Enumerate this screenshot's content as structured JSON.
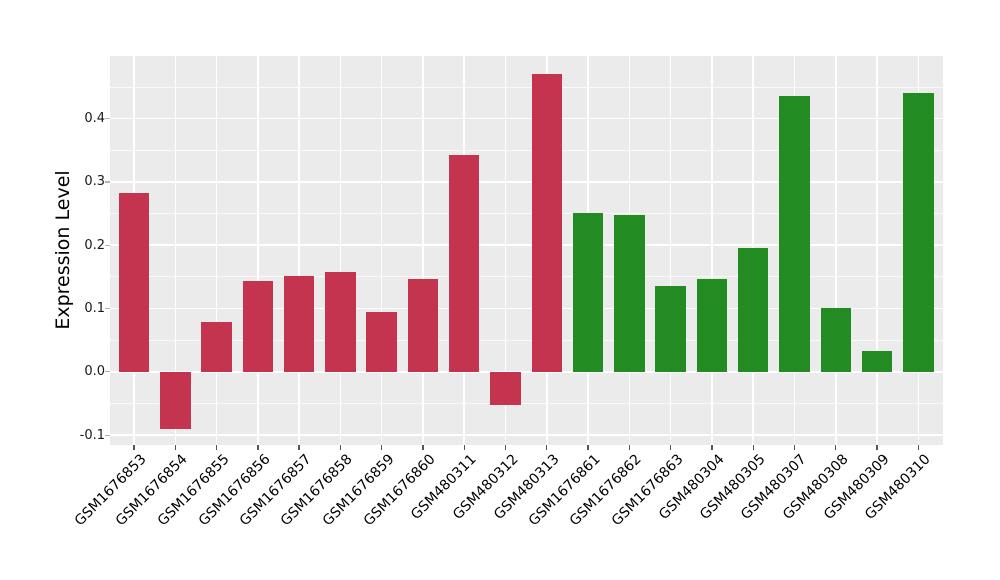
{
  "figure": {
    "background": "#ffffff"
  },
  "chart_data": {
    "type": "bar",
    "title": "",
    "xlabel": "",
    "ylabel": "Expression Level",
    "categories": [
      "GSM1676853",
      "GSM1676854",
      "GSM1676855",
      "GSM1676856",
      "GSM1676857",
      "GSM1676858",
      "GSM1676859",
      "GSM1676860",
      "GSM480311",
      "GSM480312",
      "GSM480313",
      "GSM1676861",
      "GSM1676862",
      "GSM1676863",
      "GSM480304",
      "GSM480305",
      "GSM480307",
      "GSM480308",
      "GSM480309",
      "GSM480310"
    ],
    "values": [
      0.283,
      -0.09,
      0.079,
      0.143,
      0.152,
      0.157,
      0.095,
      0.147,
      0.343,
      -0.052,
      0.471,
      0.251,
      0.247,
      0.136,
      0.147,
      0.196,
      0.436,
      0.101,
      0.033,
      0.441
    ],
    "bar_colors": [
      "#C4344E",
      "#C4344E",
      "#C4344E",
      "#C4344E",
      "#C4344E",
      "#C4344E",
      "#C4344E",
      "#C4344E",
      "#C4344E",
      "#C4344E",
      "#C4344E",
      "#228B22",
      "#228B22",
      "#228B22",
      "#228B22",
      "#228B22",
      "#228B22",
      "#228B22",
      "#228B22",
      "#228B22"
    ],
    "colors": {
      "group1_red": "#C4344E",
      "group2_green": "#228B22",
      "panel_background": "#EBEBEB",
      "gridline": "#FFFFFF"
    },
    "yticks": [
      -0.1,
      0.0,
      0.1,
      0.2,
      0.3,
      0.4
    ],
    "ytick_labels": [
      "-0.1",
      "0.0",
      "0.1",
      "0.2",
      "0.3",
      "0.4"
    ],
    "yticks_minor": [
      -0.05,
      0.05,
      0.15,
      0.25,
      0.35,
      0.45
    ],
    "ylim": [
      -0.1156,
      0.499
    ],
    "grid": true,
    "legend_position": "none",
    "x_tick_rotation_deg": 45
  }
}
